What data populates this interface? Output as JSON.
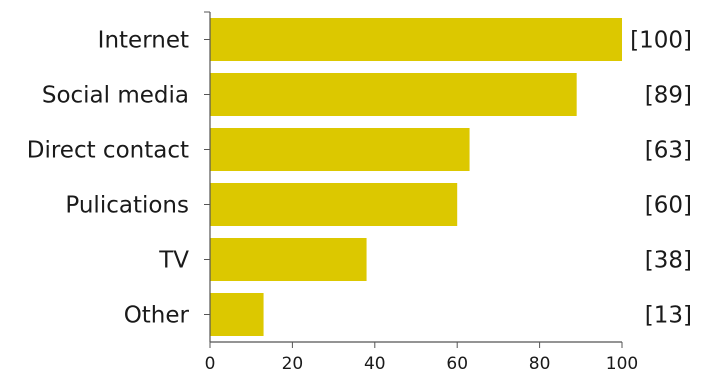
{
  "chart_data": {
    "type": "bar",
    "orientation": "horizontal",
    "categories": [
      "Internet",
      "Social media",
      "Direct contact",
      "Pulications",
      "TV",
      "Other"
    ],
    "values": [
      100,
      89,
      63,
      60,
      38,
      13
    ],
    "value_labels": [
      "[100]",
      "[89]",
      "[63]",
      "[60]",
      "[38]",
      "[13]"
    ],
    "xlim": [
      0,
      100
    ],
    "xticks": [
      0,
      20,
      40,
      60,
      80,
      100
    ],
    "title": "",
    "xlabel": "",
    "ylabel": "",
    "grid": false,
    "legend": "none",
    "bar_color": "#dcc800",
    "axis_color": "#555555"
  }
}
